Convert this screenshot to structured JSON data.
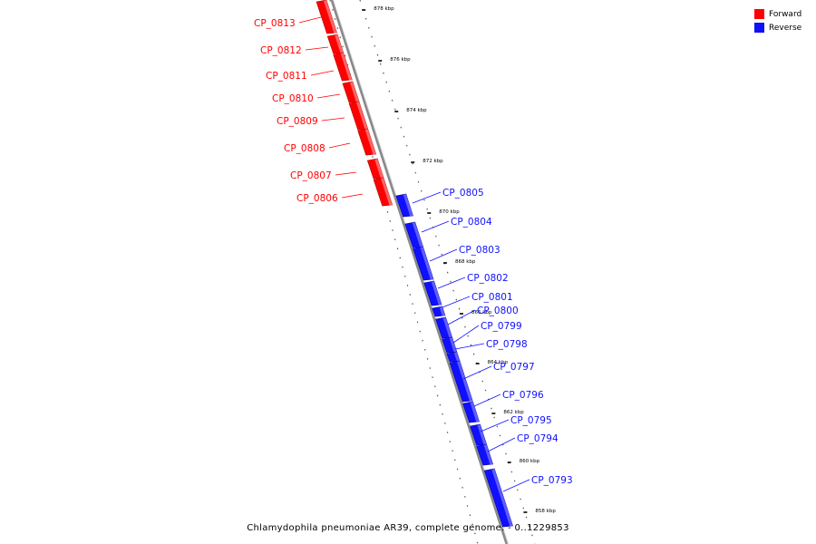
{
  "legend": {
    "forward_label": "Forward",
    "reverse_label": "Reverse",
    "forward_color": "#ff0000",
    "reverse_color": "#1010ff"
  },
  "footer": {
    "genome": "Chlamydophila pneumoniae AR39, complete genome.",
    "range": "0..1229853"
  },
  "backbone_color": "#888888",
  "ticks": [
    "878 kbp",
    "876 kbp",
    "874 kbp",
    "872 kbp",
    "870 kbp",
    "868 kbp",
    "866 kbp",
    "864 kbp",
    "862 kbp",
    "860 kbp",
    "858 kbp"
  ],
  "genes": [
    {
      "name": "CP_0813",
      "strand": "forward"
    },
    {
      "name": "CP_0812",
      "strand": "forward"
    },
    {
      "name": "CP_0811",
      "strand": "forward"
    },
    {
      "name": "CP_0810",
      "strand": "forward"
    },
    {
      "name": "CP_0809",
      "strand": "forward"
    },
    {
      "name": "CP_0808",
      "strand": "forward"
    },
    {
      "name": "CP_0807",
      "strand": "forward"
    },
    {
      "name": "CP_0806",
      "strand": "forward"
    },
    {
      "name": "CP_0805",
      "strand": "reverse"
    },
    {
      "name": "CP_0804",
      "strand": "reverse"
    },
    {
      "name": "CP_0803",
      "strand": "reverse"
    },
    {
      "name": "CP_0802",
      "strand": "reverse"
    },
    {
      "name": "CP_0801",
      "strand": "reverse"
    },
    {
      "name": "CP_0800",
      "strand": "reverse"
    },
    {
      "name": "CP_0799",
      "strand": "reverse"
    },
    {
      "name": "CP_0798",
      "strand": "reverse"
    },
    {
      "name": "CP_0797",
      "strand": "reverse"
    },
    {
      "name": "CP_0796",
      "strand": "reverse"
    },
    {
      "name": "CP_0795",
      "strand": "reverse"
    },
    {
      "name": "CP_0794",
      "strand": "reverse"
    },
    {
      "name": "CP_0793",
      "strand": "reverse"
    }
  ]
}
